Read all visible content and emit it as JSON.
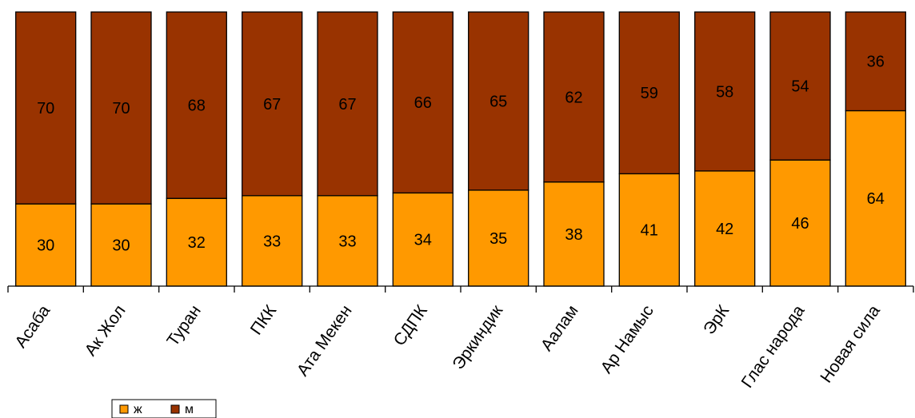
{
  "chart_data": {
    "type": "bar",
    "stacked": true,
    "percent": true,
    "categories": [
      "Асаба",
      "Ак Жол",
      "Туран",
      "ПКК",
      "Ата Мекен",
      "СДПК",
      "Эркиндик",
      "Аалам",
      "Ар Намыс",
      "ЭрК",
      "Глас народа",
      "Новая сила"
    ],
    "series": [
      {
        "name": "ж",
        "color": "#ff9900",
        "values": [
          30,
          30,
          32,
          33,
          33,
          34,
          35,
          38,
          41,
          42,
          46,
          64
        ]
      },
      {
        "name": "м",
        "color": "#993300",
        "values": [
          70,
          70,
          68,
          67,
          67,
          66,
          65,
          62,
          59,
          58,
          54,
          36
        ]
      }
    ],
    "ylim": [
      0,
      100
    ],
    "grid": false,
    "legend": "bottom-left"
  }
}
